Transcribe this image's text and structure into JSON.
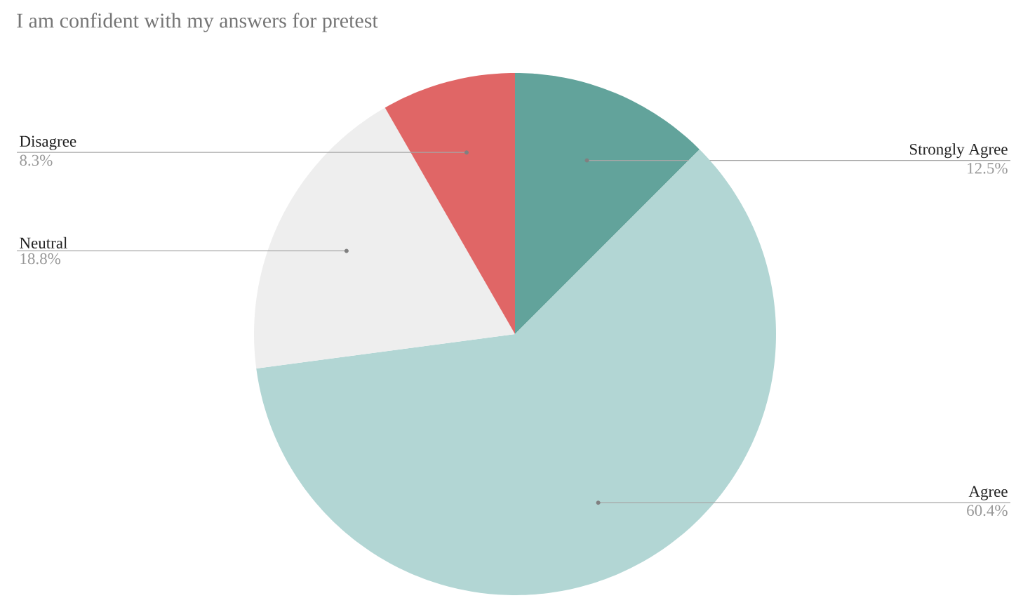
{
  "chart_data": {
    "type": "pie",
    "title": "I am confident with my answers for pretest",
    "categories": [
      "Strongly Agree",
      "Agree",
      "Neutral",
      "Disagree"
    ],
    "values": [
      12.5,
      60.4,
      18.8,
      8.3
    ],
    "value_labels": [
      "12.5%",
      "60.4%",
      "18.8%",
      "8.3%"
    ],
    "colors": [
      "#62a39b",
      "#b2d6d4",
      "#eeeeee",
      "#e06666"
    ]
  }
}
